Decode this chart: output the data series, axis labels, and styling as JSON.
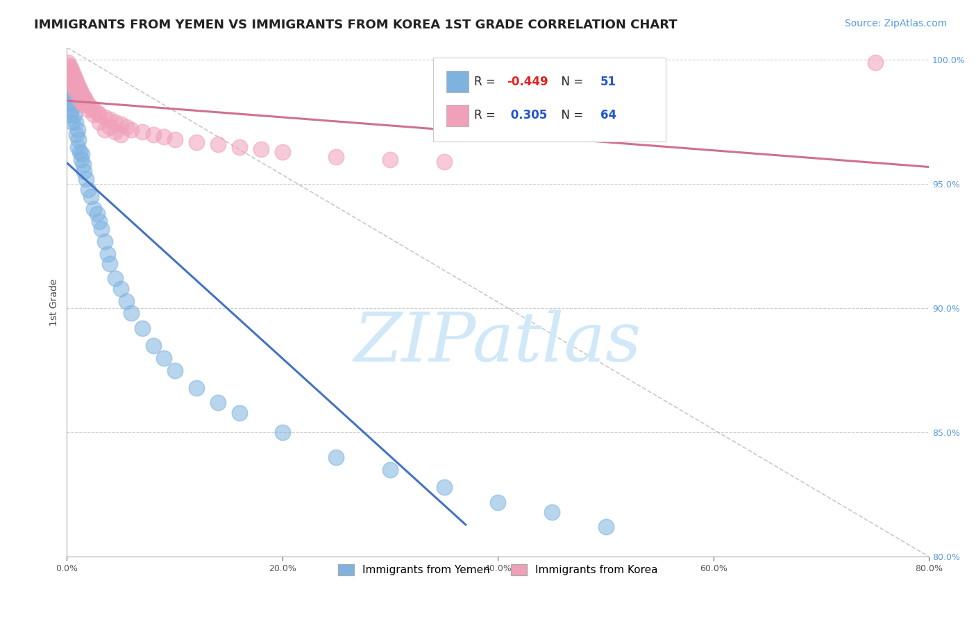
{
  "title": "IMMIGRANTS FROM YEMEN VS IMMIGRANTS FROM KOREA 1ST GRADE CORRELATION CHART",
  "source_text": "Source: ZipAtlas.com",
  "ylabel": "1st Grade",
  "legend_entry1_label": "Immigrants from Yemen",
  "legend_entry2_label": "Immigrants from Korea",
  "R_yemen": -0.449,
  "N_yemen": 51,
  "R_korea": 0.305,
  "N_korea": 64,
  "yemen_color": "#7eb3e0",
  "korea_color": "#f0a0b8",
  "yemen_line_color": "#4472c4",
  "korea_line_color": "#d07090",
  "watermark": "ZIPatlas",
  "watermark_color": "#d0e8f8",
  "background_color": "#ffffff",
  "title_fontsize": 13,
  "source_fontsize": 10,
  "ylabel_fontsize": 10,
  "xlim": [
    0.0,
    0.8
  ],
  "ylim": [
    0.8,
    1.005
  ],
  "yemen_scatter_x": [
    0.001,
    0.001,
    0.002,
    0.002,
    0.003,
    0.003,
    0.003,
    0.004,
    0.004,
    0.005,
    0.005,
    0.006,
    0.007,
    0.008,
    0.009,
    0.01,
    0.01,
    0.011,
    0.012,
    0.013,
    0.014,
    0.015,
    0.016,
    0.018,
    0.02,
    0.022,
    0.025,
    0.028,
    0.03,
    0.032,
    0.035,
    0.038,
    0.04,
    0.045,
    0.05,
    0.055,
    0.06,
    0.07,
    0.08,
    0.09,
    0.1,
    0.12,
    0.14,
    0.16,
    0.2,
    0.25,
    0.3,
    0.35,
    0.4,
    0.45,
    0.5
  ],
  "yemen_scatter_y": [
    0.995,
    0.988,
    0.983,
    0.992,
    0.985,
    0.978,
    0.997,
    0.98,
    0.987,
    0.975,
    0.992,
    0.982,
    0.978,
    0.975,
    0.97,
    0.972,
    0.965,
    0.968,
    0.963,
    0.96,
    0.962,
    0.958,
    0.955,
    0.952,
    0.948,
    0.945,
    0.94,
    0.938,
    0.935,
    0.932,
    0.927,
    0.922,
    0.918,
    0.912,
    0.908,
    0.903,
    0.898,
    0.892,
    0.885,
    0.88,
    0.875,
    0.868,
    0.862,
    0.858,
    0.85,
    0.84,
    0.835,
    0.828,
    0.822,
    0.818,
    0.812
  ],
  "korea_scatter_x": [
    0.001,
    0.001,
    0.002,
    0.002,
    0.003,
    0.003,
    0.004,
    0.004,
    0.005,
    0.005,
    0.006,
    0.007,
    0.007,
    0.008,
    0.008,
    0.009,
    0.01,
    0.01,
    0.011,
    0.012,
    0.013,
    0.014,
    0.015,
    0.016,
    0.017,
    0.018,
    0.02,
    0.022,
    0.025,
    0.028,
    0.03,
    0.035,
    0.04,
    0.045,
    0.05,
    0.055,
    0.06,
    0.07,
    0.08,
    0.09,
    0.1,
    0.12,
    0.14,
    0.16,
    0.18,
    0.2,
    0.25,
    0.3,
    0.35,
    0.03,
    0.025,
    0.02,
    0.015,
    0.012,
    0.04,
    0.035,
    0.045,
    0.05,
    0.008,
    0.009,
    0.006,
    0.007,
    0.75,
    0.014
  ],
  "korea_scatter_y": [
    0.999,
    0.997,
    0.998,
    0.996,
    0.997,
    0.995,
    0.996,
    0.994,
    0.995,
    0.993,
    0.994,
    0.993,
    0.991,
    0.992,
    0.99,
    0.991,
    0.99,
    0.988,
    0.989,
    0.988,
    0.987,
    0.986,
    0.985,
    0.985,
    0.984,
    0.983,
    0.982,
    0.981,
    0.98,
    0.979,
    0.978,
    0.977,
    0.976,
    0.975,
    0.974,
    0.973,
    0.972,
    0.971,
    0.97,
    0.969,
    0.968,
    0.967,
    0.966,
    0.965,
    0.964,
    0.963,
    0.961,
    0.96,
    0.959,
    0.975,
    0.978,
    0.98,
    0.982,
    0.984,
    0.973,
    0.972,
    0.971,
    0.97,
    0.988,
    0.987,
    0.99,
    0.989,
    0.999,
    0.983
  ]
}
